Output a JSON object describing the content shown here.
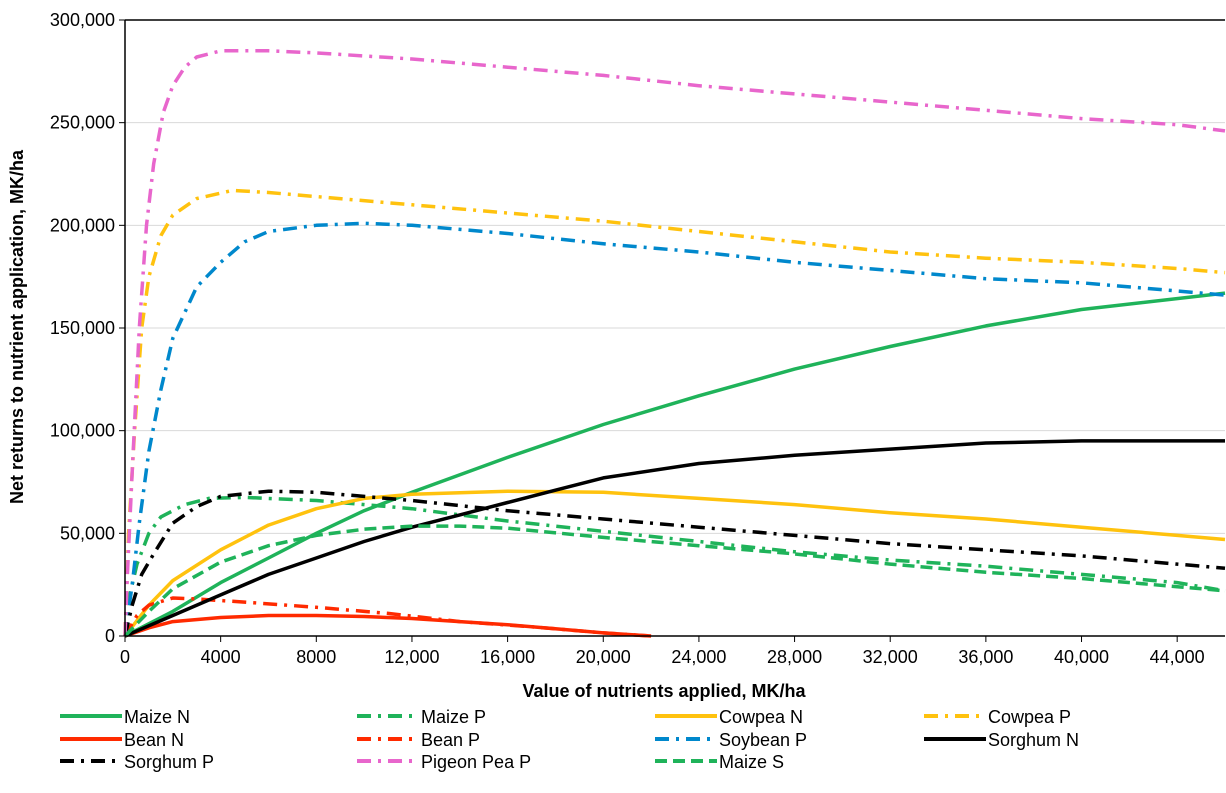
{
  "chart_data": {
    "type": "line",
    "title": "",
    "xlabel": "Value of nutrients applied, MK/ha",
    "ylabel": "Net returns to nutrient application, MK/ha",
    "xlim": [
      0,
      46000
    ],
    "ylim": [
      0,
      300000
    ],
    "x_ticks": [
      0,
      4000,
      8000,
      12000,
      16000,
      20000,
      24000,
      28000,
      32000,
      36000,
      40000,
      44000
    ],
    "x_tick_labels": [
      "0",
      "4000",
      "8000",
      "12,000",
      "16,000",
      "20,000",
      "24,000",
      "28,000",
      "32,000",
      "36,000",
      "40,000",
      "44,000"
    ],
    "y_ticks": [
      0,
      50000,
      100000,
      150000,
      200000,
      250000,
      300000
    ],
    "y_tick_labels": [
      "0",
      "50,000",
      "100,000",
      "150,000",
      "200,000",
      "250,000",
      "300,000"
    ],
    "grid": "horizontal",
    "legend_position": "bottom",
    "series": [
      {
        "name": "Maize N",
        "color": "#1fb35a",
        "dash": "solid",
        "points": [
          [
            0,
            0
          ],
          [
            2000,
            12000
          ],
          [
            4000,
            26000
          ],
          [
            6000,
            38000
          ],
          [
            8000,
            50000
          ],
          [
            10000,
            61000
          ],
          [
            12000,
            70000
          ],
          [
            16000,
            87000
          ],
          [
            20000,
            103000
          ],
          [
            24000,
            117000
          ],
          [
            28000,
            130000
          ],
          [
            32000,
            141000
          ],
          [
            36000,
            151000
          ],
          [
            40000,
            159000
          ],
          [
            46000,
            167000
          ]
        ]
      },
      {
        "name": "Maize P",
        "color": "#1fb35a",
        "dash": "dashdot",
        "points": [
          [
            0,
            0
          ],
          [
            200,
            20000
          ],
          [
            500,
            35000
          ],
          [
            1000,
            50000
          ],
          [
            1500,
            58000
          ],
          [
            2500,
            64000
          ],
          [
            3500,
            67000
          ],
          [
            5000,
            67500
          ],
          [
            8000,
            66000
          ],
          [
            12000,
            62000
          ],
          [
            16000,
            56000
          ],
          [
            20000,
            51000
          ],
          [
            24000,
            46000
          ],
          [
            28000,
            41000
          ],
          [
            32000,
            37000
          ],
          [
            36000,
            34000
          ],
          [
            40000,
            30000
          ],
          [
            44000,
            26000
          ],
          [
            46000,
            22000
          ]
        ]
      },
      {
        "name": "Cowpea N",
        "color": "#ffc20e",
        "dash": "solid",
        "points": [
          [
            0,
            0
          ],
          [
            1000,
            15000
          ],
          [
            2000,
            27000
          ],
          [
            4000,
            42000
          ],
          [
            6000,
            54000
          ],
          [
            8000,
            62000
          ],
          [
            10000,
            67000
          ],
          [
            12000,
            69000
          ],
          [
            16000,
            70500
          ],
          [
            20000,
            70000
          ],
          [
            24000,
            67000
          ],
          [
            28000,
            64000
          ],
          [
            32000,
            60000
          ],
          [
            36000,
            57000
          ],
          [
            40000,
            53000
          ],
          [
            44000,
            49000
          ],
          [
            46000,
            47000
          ]
        ]
      },
      {
        "name": "Cowpea P",
        "color": "#ffc20e",
        "dash": "dashdot",
        "points": [
          [
            0,
            0
          ],
          [
            150,
            50000
          ],
          [
            400,
            100000
          ],
          [
            700,
            150000
          ],
          [
            1000,
            175000
          ],
          [
            1500,
            195000
          ],
          [
            2000,
            205000
          ],
          [
            3000,
            213000
          ],
          [
            4500,
            217000
          ],
          [
            6000,
            216000
          ],
          [
            8000,
            214000
          ],
          [
            12000,
            210000
          ],
          [
            16000,
            206000
          ],
          [
            20000,
            202000
          ],
          [
            24000,
            197000
          ],
          [
            28000,
            192000
          ],
          [
            32000,
            187000
          ],
          [
            36000,
            184000
          ],
          [
            40000,
            182000
          ],
          [
            44000,
            179000
          ],
          [
            46000,
            177000
          ]
        ]
      },
      {
        "name": "Bean N",
        "color": "#ff2a00",
        "dash": "solid",
        "points": [
          [
            0,
            0
          ],
          [
            1000,
            4000
          ],
          [
            2000,
            7000
          ],
          [
            4000,
            9000
          ],
          [
            6000,
            10000
          ],
          [
            8000,
            10000
          ],
          [
            10000,
            9500
          ],
          [
            12000,
            8500
          ],
          [
            14000,
            7000
          ],
          [
            16000,
            5500
          ],
          [
            18000,
            3500
          ],
          [
            20000,
            1500
          ],
          [
            22000,
            0
          ]
        ]
      },
      {
        "name": "Bean P",
        "color": "#ff2a00",
        "dash": "dashdot",
        "points": [
          [
            0,
            0
          ],
          [
            500,
            10000
          ],
          [
            1000,
            15000
          ],
          [
            2000,
            18500
          ],
          [
            3000,
            18000
          ],
          [
            5000,
            16500
          ],
          [
            8000,
            14000
          ],
          [
            11000,
            11000
          ],
          [
            14000,
            7000
          ],
          [
            17000,
            4500
          ],
          [
            20000,
            1500
          ],
          [
            22000,
            0
          ]
        ]
      },
      {
        "name": "Soybean P",
        "color": "#0088cc",
        "dash": "dashdot",
        "points": [
          [
            0,
            0
          ],
          [
            300,
            25000
          ],
          [
            600,
            55000
          ],
          [
            1000,
            90000
          ],
          [
            1500,
            120000
          ],
          [
            2000,
            145000
          ],
          [
            3000,
            170000
          ],
          [
            4000,
            182000
          ],
          [
            5000,
            192000
          ],
          [
            6000,
            197000
          ],
          [
            8000,
            200000
          ],
          [
            10000,
            201000
          ],
          [
            12000,
            200000
          ],
          [
            16000,
            196000
          ],
          [
            20000,
            191000
          ],
          [
            24000,
            187000
          ],
          [
            28000,
            182000
          ],
          [
            32000,
            178000
          ],
          [
            36000,
            174000
          ],
          [
            40000,
            172000
          ],
          [
            44000,
            168000
          ],
          [
            46000,
            166000
          ]
        ]
      },
      {
        "name": "Sorghum N",
        "color": "#000000",
        "dash": "solid",
        "points": [
          [
            0,
            0
          ],
          [
            2000,
            10000
          ],
          [
            4000,
            20000
          ],
          [
            6000,
            30000
          ],
          [
            8000,
            38000
          ],
          [
            10000,
            46000
          ],
          [
            12000,
            53000
          ],
          [
            14000,
            59000
          ],
          [
            16000,
            65000
          ],
          [
            18000,
            71000
          ],
          [
            20000,
            77000
          ],
          [
            24000,
            84000
          ],
          [
            28000,
            88000
          ],
          [
            32000,
            91000
          ],
          [
            36000,
            94000
          ],
          [
            40000,
            95000
          ],
          [
            46000,
            95000
          ]
        ]
      },
      {
        "name": "Sorghum P",
        "color": "#000000",
        "dash": "dashdot",
        "points": [
          [
            0,
            0
          ],
          [
            300,
            15000
          ],
          [
            700,
            30000
          ],
          [
            1200,
            40000
          ],
          [
            2000,
            55000
          ],
          [
            3000,
            63000
          ],
          [
            4000,
            68000
          ],
          [
            6000,
            70500
          ],
          [
            8000,
            70000
          ],
          [
            10000,
            68000
          ],
          [
            12000,
            66000
          ],
          [
            16000,
            61000
          ],
          [
            20000,
            57000
          ],
          [
            24000,
            53000
          ],
          [
            28000,
            49000
          ],
          [
            32000,
            45000
          ],
          [
            36000,
            42000
          ],
          [
            40000,
            39000
          ],
          [
            44000,
            35000
          ],
          [
            46000,
            33000
          ]
        ]
      },
      {
        "name": "Pigeon Pea P",
        "color": "#e866cc",
        "dash": "dashdot",
        "points": [
          [
            0,
            0
          ],
          [
            100,
            30000
          ],
          [
            300,
            80000
          ],
          [
            600,
            150000
          ],
          [
            900,
            200000
          ],
          [
            1200,
            230000
          ],
          [
            1600,
            255000
          ],
          [
            2000,
            268000
          ],
          [
            2500,
            277000
          ],
          [
            3000,
            282000
          ],
          [
            4000,
            285000
          ],
          [
            6000,
            285000
          ],
          [
            8000,
            284000
          ],
          [
            12000,
            281000
          ],
          [
            16000,
            277000
          ],
          [
            20000,
            273000
          ],
          [
            24000,
            268000
          ],
          [
            28000,
            264000
          ],
          [
            32000,
            260000
          ],
          [
            36000,
            256000
          ],
          [
            40000,
            252000
          ],
          [
            44000,
            249000
          ],
          [
            46000,
            246000
          ]
        ]
      },
      {
        "name": "Maize S",
        "color": "#1fb35a",
        "dash": "dashed",
        "points": [
          [
            0,
            0
          ],
          [
            1000,
            12000
          ],
          [
            2000,
            23000
          ],
          [
            4000,
            36000
          ],
          [
            6000,
            44000
          ],
          [
            8000,
            49000
          ],
          [
            10000,
            52000
          ],
          [
            12000,
            53500
          ],
          [
            14000,
            53500
          ],
          [
            16000,
            52500
          ],
          [
            20000,
            48000
          ],
          [
            24000,
            44000
          ],
          [
            28000,
            40000
          ],
          [
            32000,
            35000
          ],
          [
            36000,
            31000
          ],
          [
            40000,
            28000
          ],
          [
            44000,
            24000
          ],
          [
            46000,
            22000
          ]
        ]
      }
    ]
  }
}
